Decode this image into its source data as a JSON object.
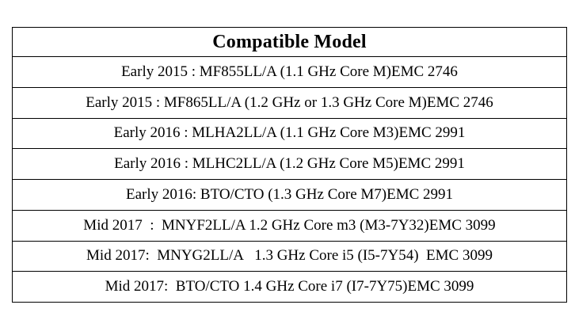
{
  "table": {
    "header": "Compatible Model",
    "rows": [
      "Early 2015 : MF855LL/A (1.1 GHz Core M)EMC 2746",
      "Early 2015 : MF865LL/A (1.2 GHz or 1.3 GHz Core M)EMC 2746",
      "Early 2016 : MLHA2LL/A (1.1 GHz Core M3)EMC 2991",
      "Early 2016 : MLHC2LL/A (1.2 GHz Core M5)EMC 2991",
      "Early 2016: BTO/CTO (1.3 GHz Core M7)EMC 2991",
      "Mid 2017  :  MNYF2LL/A 1.2 GHz Core m3 (M3-7Y32)EMC 3099",
      "Mid 2017:  MNYG2LL/A   1.3 GHz Core i5 (I5-7Y54)  EMC 3099",
      "Mid 2017:  BTO/CTO 1.4 GHz Core i7 (I7-7Y75)EMC 3099"
    ],
    "border_color": "#000000",
    "background_color": "#ffffff",
    "text_color": "#000000"
  }
}
